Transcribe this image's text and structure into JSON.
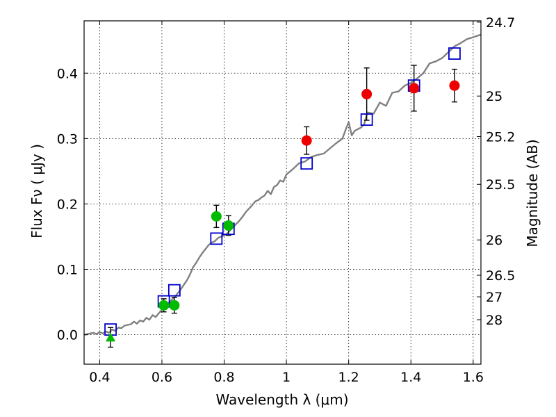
{
  "chart_data": {
    "type": "scatter",
    "xlabel": "Wavelength  λ (μm)",
    "ylabel": "Flux  Fν  ( μJy )",
    "ylabel_right": "Magnitude (AB)",
    "xlim": [
      0.35,
      1.625
    ],
    "ylim": [
      -0.045,
      0.48
    ],
    "grid": true,
    "x_ticks": [
      0.4,
      0.6,
      0.8,
      1.0,
      1.2,
      1.4,
      1.6
    ],
    "x_tick_labels": [
      "0.4",
      "0.6",
      "0.8",
      "1",
      "1.2",
      "1.4",
      "1.6"
    ],
    "y_ticks": [
      0.0,
      0.1,
      0.2,
      0.3,
      0.4
    ],
    "y_tick_labels": [
      "0.0",
      "0.1",
      "0.2",
      "0.3",
      "0.4"
    ],
    "right_ticks": [
      {
        "label": "24.7",
        "flux": 0.478
      },
      {
        "label": "25",
        "flux": 0.365
      },
      {
        "label": "25.2",
        "flux": 0.303
      },
      {
        "label": "25.5",
        "flux": 0.23
      },
      {
        "label": "26",
        "flux": 0.145
      },
      {
        "label": "26.5",
        "flux": 0.091
      },
      {
        "label": "27",
        "flux": 0.058
      },
      {
        "label": "28",
        "flux": 0.023
      }
    ],
    "series": [
      {
        "name": "model_spectrum",
        "kind": "line",
        "color": "#808080",
        "x": [
          0.35,
          0.36,
          0.37,
          0.38,
          0.39,
          0.4,
          0.41,
          0.42,
          0.43,
          0.44,
          0.45,
          0.46,
          0.47,
          0.48,
          0.49,
          0.5,
          0.51,
          0.52,
          0.53,
          0.54,
          0.55,
          0.56,
          0.57,
          0.58,
          0.59,
          0.6,
          0.61,
          0.62,
          0.63,
          0.64,
          0.65,
          0.66,
          0.67,
          0.68,
          0.69,
          0.7,
          0.71,
          0.72,
          0.73,
          0.74,
          0.75,
          0.76,
          0.77,
          0.78,
          0.79,
          0.8,
          0.81,
          0.82,
          0.83,
          0.84,
          0.85,
          0.86,
          0.87,
          0.88,
          0.89,
          0.9,
          0.91,
          0.92,
          0.93,
          0.94,
          0.95,
          0.96,
          0.97,
          0.98,
          0.99,
          1.0,
          1.02,
          1.04,
          1.06,
          1.08,
          1.1,
          1.12,
          1.14,
          1.16,
          1.18,
          1.19,
          1.2,
          1.21,
          1.22,
          1.24,
          1.25,
          1.26,
          1.28,
          1.3,
          1.32,
          1.34,
          1.36,
          1.38,
          1.4,
          1.42,
          1.44,
          1.46,
          1.48,
          1.5,
          1.52,
          1.54,
          1.56,
          1.58,
          1.6,
          1.625
        ],
        "y": [
          0.0,
          0.001,
          0.002,
          0.003,
          0.001,
          0.004,
          0.002,
          0.005,
          0.003,
          0.008,
          0.006,
          0.011,
          0.01,
          0.014,
          0.015,
          0.016,
          0.02,
          0.017,
          0.022,
          0.02,
          0.026,
          0.023,
          0.03,
          0.027,
          0.033,
          0.038,
          0.044,
          0.048,
          0.053,
          0.057,
          0.063,
          0.069,
          0.076,
          0.083,
          0.092,
          0.103,
          0.11,
          0.118,
          0.125,
          0.131,
          0.137,
          0.141,
          0.143,
          0.148,
          0.15,
          0.152,
          0.155,
          0.16,
          0.165,
          0.17,
          0.175,
          0.181,
          0.188,
          0.193,
          0.198,
          0.204,
          0.206,
          0.21,
          0.213,
          0.22,
          0.215,
          0.226,
          0.229,
          0.236,
          0.234,
          0.245,
          0.253,
          0.262,
          0.265,
          0.272,
          0.275,
          0.277,
          0.285,
          0.293,
          0.3,
          0.313,
          0.325,
          0.305,
          0.312,
          0.317,
          0.322,
          0.34,
          0.338,
          0.355,
          0.35,
          0.37,
          0.372,
          0.381,
          0.385,
          0.392,
          0.4,
          0.415,
          0.418,
          0.423,
          0.432,
          0.441,
          0.446,
          0.452,
          0.455,
          0.459
        ]
      },
      {
        "name": "model_photometry",
        "kind": "marker",
        "marker": "open-square",
        "color": "#0000cc",
        "x": [
          0.435,
          0.606,
          0.64,
          0.775,
          0.814,
          1.065,
          1.258,
          1.41,
          1.54
        ],
        "y": [
          0.008,
          0.051,
          0.068,
          0.147,
          0.162,
          0.262,
          0.329,
          0.381,
          0.43
        ]
      },
      {
        "name": "observed_red",
        "kind": "marker",
        "marker": "filled-circle",
        "color": "#ee0000",
        "x": [
          1.065,
          1.258,
          1.41,
          1.54
        ],
        "y": [
          0.297,
          0.368,
          0.377,
          0.381
        ],
        "yerr": [
          0.021,
          0.04,
          0.035,
          0.025
        ]
      },
      {
        "name": "observed_green",
        "kind": "marker",
        "marker": "filled-circle",
        "color": "#00bb00",
        "x": [
          0.606,
          0.64,
          0.775,
          0.814
        ],
        "y": [
          0.045,
          0.045,
          0.181,
          0.167
        ],
        "yerr": [
          0.01,
          0.012,
          0.017,
          0.015
        ]
      },
      {
        "name": "observed_green_limit",
        "kind": "marker",
        "marker": "filled-triangle",
        "color": "#00bb00",
        "x": [
          0.435
        ],
        "y": [
          -0.004
        ],
        "yerr": [
          0.015
        ]
      }
    ]
  }
}
